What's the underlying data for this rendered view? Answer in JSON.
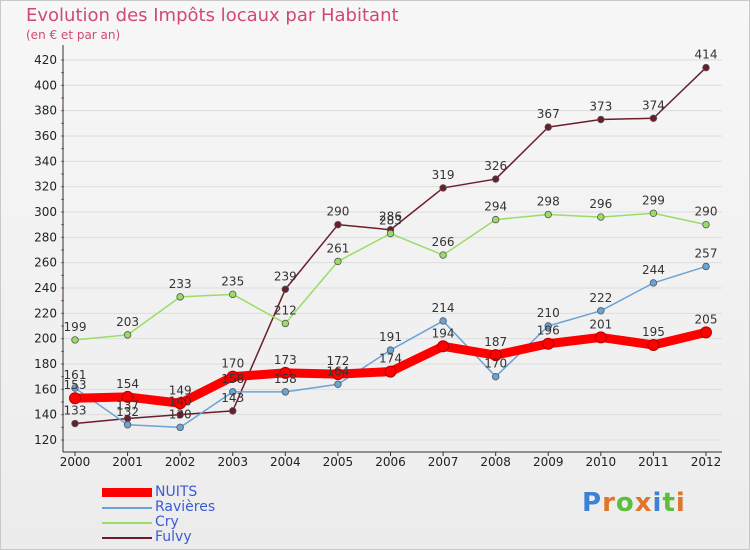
{
  "title": "Evolution des Impôts locaux par Habitant",
  "subtitle": "(en € et par an)",
  "logo": {
    "letters": [
      "P",
      "r",
      "o",
      "x",
      "i",
      "t",
      "i"
    ],
    "colors": [
      "#3b82d6",
      "#e0762a",
      "#5bbf3a",
      "#e0762a",
      "#3b82d6",
      "#5bbf3a",
      "#e0762a"
    ]
  },
  "chart_data": {
    "type": "line",
    "x": [
      "2000",
      "2001",
      "2002",
      "2003",
      "2004",
      "2005",
      "2006",
      "2007",
      "2008",
      "2009",
      "2010",
      "2011",
      "2012"
    ],
    "ylim": [
      120,
      420
    ],
    "yticks": [
      120,
      140,
      160,
      180,
      200,
      220,
      240,
      260,
      280,
      300,
      320,
      340,
      360,
      380,
      400,
      420
    ],
    "grid": true,
    "series": [
      {
        "name": "NUITS",
        "color": "#ff0000",
        "values": [
          153,
          154,
          149,
          170,
          173,
          172,
          174,
          194,
          187,
          196,
          201,
          195,
          205
        ]
      },
      {
        "name": "Ravières",
        "color": "#6aa3d6",
        "values": [
          161,
          132,
          130,
          158,
          158,
          164,
          191,
          214,
          170,
          210,
          222,
          244,
          257
        ]
      },
      {
        "name": "Cry",
        "color": "#99dd66",
        "values": [
          199,
          203,
          233,
          235,
          212,
          261,
          283,
          266,
          294,
          298,
          296,
          299,
          290
        ]
      },
      {
        "name": "Fulvy",
        "color": "#6b1e2a",
        "values": [
          133,
          137,
          140,
          143,
          239,
          290,
          286,
          319,
          326,
          367,
          373,
          374,
          414
        ]
      }
    ]
  }
}
